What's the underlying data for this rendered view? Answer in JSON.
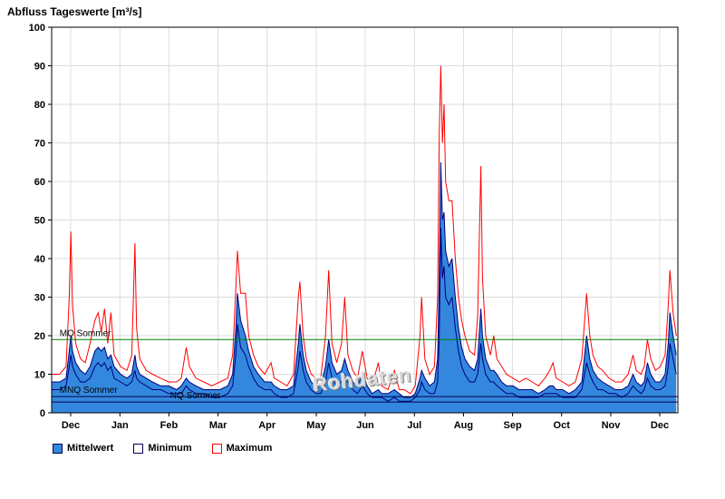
{
  "title": "Abfluss Tageswerte [m³/s]",
  "watermark": "Rohdaten",
  "legend": [
    {
      "label": "Mittelwert",
      "fill": "#3388DD",
      "border": "#000050"
    },
    {
      "label": "Minimum",
      "fill": "#FFFFFF",
      "border": "#000050"
    },
    {
      "label": "Maximum",
      "fill": "#FFFFFF",
      "border": "#FF0000"
    }
  ],
  "chart_data": {
    "type": "area",
    "title": "Abfluss Tageswerte [m³/s]",
    "xlabel": "",
    "ylabel": "m³/s",
    "ylim": [
      0,
      100
    ],
    "y_ticks": [
      0,
      10,
      20,
      30,
      40,
      50,
      60,
      70,
      80,
      90,
      100
    ],
    "grid": true,
    "legend_position": "bottom-left",
    "x_domain_days": [
      0,
      391
    ],
    "x_tick_days": [
      11.9,
      42.6,
      73.2,
      103.9,
      134.5,
      165.2,
      195.8,
      226.5,
      257.1,
      287.8,
      318.4,
      349.1,
      379.7
    ],
    "x_tick_labels": [
      "Dec",
      "Jan",
      "Feb",
      "Mar",
      "Apr",
      "May",
      "Jun",
      "Jul",
      "Aug",
      "Sep",
      "Oct",
      "Nov",
      "Dec"
    ],
    "reference_lines": [
      {
        "label": "MQ Sommer",
        "value": 19,
        "color": "#008000",
        "label_day": 5
      },
      {
        "label": "MNQ Sommer",
        "value": 4.2,
        "color": "#000050",
        "label_day": 5
      },
      {
        "label": "NQ Sommer",
        "value": 2.8,
        "color": "#000050",
        "label_day": 74
      }
    ],
    "series_names": {
      "mean": "Mittelwert",
      "min": "Minimum",
      "max": "Maximum"
    },
    "colors": {
      "grid": "#dcdcdc",
      "axis": "#000000",
      "mean_fill": "#3388DD",
      "mean_stroke": "#000080",
      "min_line": "#000080",
      "max_line": "#FF0000"
    },
    "point_format": [
      "day",
      "min",
      "mean",
      "max"
    ],
    "points": [
      [
        0,
        6,
        8,
        10
      ],
      [
        5,
        6,
        8,
        10
      ],
      [
        9,
        7,
        9,
        12
      ],
      [
        11,
        12,
        16,
        30
      ],
      [
        12,
        15,
        20,
        47
      ],
      [
        13,
        12,
        16,
        28
      ],
      [
        15,
        10,
        13,
        18
      ],
      [
        18,
        8,
        11,
        14
      ],
      [
        21,
        8,
        10,
        13
      ],
      [
        24,
        9,
        12,
        18
      ],
      [
        27,
        12,
        16,
        24
      ],
      [
        29,
        13,
        17,
        26
      ],
      [
        31,
        12,
        16,
        21
      ],
      [
        33,
        13,
        17,
        27
      ],
      [
        35,
        11,
        14,
        18
      ],
      [
        37,
        12,
        15,
        26
      ],
      [
        39,
        9,
        12,
        15
      ],
      [
        43,
        8,
        10,
        12
      ],
      [
        47,
        7,
        9,
        11
      ],
      [
        50,
        8,
        10,
        15
      ],
      [
        52,
        11,
        15,
        44
      ],
      [
        53,
        9,
        12,
        22
      ],
      [
        55,
        8,
        10,
        14
      ],
      [
        59,
        7,
        9,
        11
      ],
      [
        63,
        6,
        8,
        10
      ],
      [
        68,
        6,
        7,
        9
      ],
      [
        73,
        5,
        7,
        8
      ],
      [
        78,
        5,
        6,
        8
      ],
      [
        81,
        5,
        7,
        9
      ],
      [
        84,
        7,
        9,
        17
      ],
      [
        86,
        6,
        8,
        12
      ],
      [
        90,
        5,
        7,
        9
      ],
      [
        95,
        5,
        6,
        8
      ],
      [
        100,
        4,
        6,
        7
      ],
      [
        105,
        4,
        6,
        8
      ],
      [
        110,
        5,
        7,
        9
      ],
      [
        113,
        7,
        10,
        15
      ],
      [
        115,
        15,
        22,
        32
      ],
      [
        116,
        23,
        31,
        42
      ],
      [
        118,
        17,
        24,
        31
      ],
      [
        121,
        15,
        20,
        31
      ],
      [
        123,
        12,
        16,
        20
      ],
      [
        126,
        9,
        12,
        15
      ],
      [
        129,
        7,
        10,
        12
      ],
      [
        133,
        6,
        8,
        10
      ],
      [
        137,
        6,
        8,
        13
      ],
      [
        139,
        5,
        7,
        9
      ],
      [
        143,
        4,
        6,
        8
      ],
      [
        147,
        4,
        6,
        7
      ],
      [
        151,
        5,
        7,
        10
      ],
      [
        154,
        12,
        18,
        30
      ],
      [
        155,
        16,
        23,
        34
      ],
      [
        157,
        11,
        15,
        20
      ],
      [
        159,
        8,
        11,
        14
      ],
      [
        162,
        6,
        8,
        10
      ],
      [
        165,
        5,
        7,
        9
      ],
      [
        168,
        5,
        7,
        9
      ],
      [
        171,
        8,
        12,
        20
      ],
      [
        173,
        13,
        19,
        37
      ],
      [
        175,
        9,
        13,
        18
      ],
      [
        178,
        7,
        10,
        13
      ],
      [
        181,
        8,
        11,
        18
      ],
      [
        183,
        10,
        14,
        30
      ],
      [
        185,
        8,
        11,
        15
      ],
      [
        188,
        6,
        8,
        11
      ],
      [
        191,
        5,
        7,
        9
      ],
      [
        194,
        7,
        10,
        16
      ],
      [
        197,
        5,
        7,
        9
      ],
      [
        200,
        4,
        5,
        7
      ],
      [
        204,
        4,
        6,
        13
      ],
      [
        206,
        4,
        5,
        7
      ],
      [
        210,
        3,
        5,
        6
      ],
      [
        214,
        4,
        6,
        11
      ],
      [
        217,
        3,
        5,
        6
      ],
      [
        220,
        3,
        4,
        6
      ],
      [
        224,
        3,
        4,
        5
      ],
      [
        227,
        4,
        5,
        7
      ],
      [
        230,
        6,
        9,
        20
      ],
      [
        231,
        8,
        11,
        30
      ],
      [
        233,
        6,
        9,
        14
      ],
      [
        236,
        5,
        7,
        10
      ],
      [
        239,
        5,
        8,
        12
      ],
      [
        241,
        8,
        14,
        30
      ],
      [
        242,
        20,
        35,
        72
      ],
      [
        243,
        48,
        65,
        90
      ],
      [
        244,
        35,
        50,
        70
      ],
      [
        245,
        38,
        52,
        80
      ],
      [
        246,
        30,
        42,
        60
      ],
      [
        248,
        28,
        38,
        55
      ],
      [
        250,
        30,
        40,
        55
      ],
      [
        252,
        22,
        30,
        40
      ],
      [
        254,
        16,
        22,
        30
      ],
      [
        256,
        12,
        17,
        24
      ],
      [
        258,
        10,
        14,
        20
      ],
      [
        261,
        8,
        12,
        16
      ],
      [
        264,
        8,
        11,
        15
      ],
      [
        266,
        10,
        14,
        25
      ],
      [
        268,
        18,
        27,
        64
      ],
      [
        269,
        14,
        20,
        35
      ],
      [
        271,
        10,
        14,
        20
      ],
      [
        274,
        8,
        11,
        15
      ],
      [
        276,
        8,
        11,
        20
      ],
      [
        278,
        7,
        10,
        14
      ],
      [
        281,
        6,
        8,
        12
      ],
      [
        284,
        5,
        7,
        10
      ],
      [
        288,
        5,
        7,
        9
      ],
      [
        292,
        4,
        6,
        8
      ],
      [
        296,
        4,
        6,
        9
      ],
      [
        300,
        4,
        6,
        8
      ],
      [
        304,
        4,
        5,
        7
      ],
      [
        308,
        5,
        6,
        9
      ],
      [
        311,
        5,
        7,
        11
      ],
      [
        313,
        5,
        7,
        13
      ],
      [
        315,
        5,
        6,
        9
      ],
      [
        319,
        4,
        6,
        8
      ],
      [
        323,
        4,
        5,
        7
      ],
      [
        327,
        4,
        6,
        8
      ],
      [
        331,
        6,
        8,
        14
      ],
      [
        334,
        13,
        20,
        31
      ],
      [
        336,
        10,
        14,
        20
      ],
      [
        338,
        8,
        11,
        15
      ],
      [
        341,
        6,
        9,
        12
      ],
      [
        344,
        6,
        8,
        11
      ],
      [
        348,
        5,
        7,
        9
      ],
      [
        352,
        5,
        6,
        8
      ],
      [
        356,
        4,
        6,
        8
      ],
      [
        360,
        5,
        7,
        10
      ],
      [
        363,
        7,
        10,
        15
      ],
      [
        365,
        6,
        8,
        11
      ],
      [
        368,
        5,
        7,
        10
      ],
      [
        370,
        6,
        8,
        12
      ],
      [
        372,
        9,
        13,
        19
      ],
      [
        374,
        7,
        10,
        14
      ],
      [
        377,
        6,
        8,
        11
      ],
      [
        380,
        6,
        8,
        12
      ],
      [
        383,
        7,
        10,
        15
      ],
      [
        385,
        12,
        18,
        28
      ],
      [
        386,
        18,
        26,
        37
      ],
      [
        388,
        14,
        20,
        26
      ],
      [
        390,
        10,
        15,
        20
      ]
    ]
  }
}
